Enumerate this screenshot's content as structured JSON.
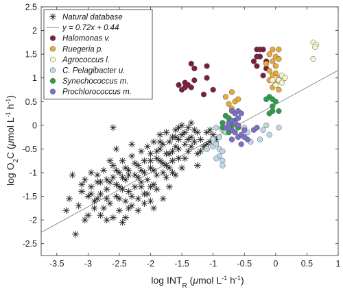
{
  "chart_data": {
    "type": "scatter",
    "xlabel": {
      "main": "log INT",
      "sub": "R",
      "pre_unit": " (",
      "mu": "μ",
      "unit": "mol L",
      "exp1": "-1",
      "mid": " h",
      "exp2": "-1",
      "close": ")"
    },
    "ylabel": {
      "main": "log O",
      "sub": "2",
      "tail": "C (",
      "mu": "μ",
      "unit": "mol L",
      "exp1": "-1",
      "mid": " h",
      "exp2": "-1",
      "close": ")"
    },
    "xlim": [
      -3.75,
      1
    ],
    "ylim": [
      -2.75,
      2.5
    ],
    "x_ticks": [
      -3.5,
      -3,
      -2.5,
      -2,
      -1.5,
      -1,
      -0.5,
      0,
      0.5,
      1
    ],
    "x_tick_labels": [
      "-3.5",
      "-3",
      "-2.5",
      "-2",
      "-1.5",
      "-1",
      "-0.5",
      "0",
      "0.5",
      "1"
    ],
    "y_ticks": [
      -2.5,
      -2,
      -1.5,
      -1,
      -0.5,
      0,
      0.5,
      1,
      1.5,
      2,
      2.5
    ],
    "y_tick_labels": [
      "-2.5",
      "-2",
      "-1.5",
      "-1",
      "-0.5",
      "0",
      "0.5",
      "1",
      "1.5",
      "2",
      "2.5"
    ],
    "grid": false,
    "legend_position": "top-left",
    "fit_line": {
      "label": "y = 0.72x + 0.44",
      "slope": 0.72,
      "intercept": 0.44,
      "color": "#777777"
    },
    "series": [
      {
        "name": "Natural database",
        "marker": "asterisk",
        "color": "#222222",
        "points": [
          [
            -3.2,
            -2.3
          ],
          [
            -3.25,
            -1.05
          ],
          [
            -3.3,
            -1.55
          ],
          [
            -3.15,
            -1.7
          ],
          [
            -3.05,
            -2.0
          ],
          [
            -3.0,
            -1.9
          ],
          [
            -3.1,
            -1.4
          ],
          [
            -2.95,
            -1.3
          ],
          [
            -2.9,
            -1.6
          ],
          [
            -2.85,
            -1.55
          ],
          [
            -2.85,
            -1.2
          ],
          [
            -2.95,
            -1.0
          ],
          [
            -2.8,
            -1.45
          ],
          [
            -2.75,
            -1.75
          ],
          [
            -2.8,
            -1.9
          ],
          [
            -2.7,
            -2.0
          ],
          [
            -2.65,
            -1.65
          ],
          [
            -2.7,
            -1.35
          ],
          [
            -2.6,
            -1.1
          ],
          [
            -2.6,
            -0.85
          ],
          [
            -2.55,
            -1.25
          ],
          [
            -2.55,
            -1.5
          ],
          [
            -2.5,
            -1.8
          ],
          [
            -2.5,
            -1.0
          ],
          [
            -2.45,
            -1.35
          ],
          [
            -2.45,
            -0.75
          ],
          [
            -2.4,
            -1.15
          ],
          [
            -2.4,
            -1.6
          ],
          [
            -2.35,
            -0.95
          ],
          [
            -2.35,
            -1.4
          ],
          [
            -2.3,
            -1.7
          ],
          [
            -2.3,
            -0.65
          ],
          [
            -2.25,
            -1.05
          ],
          [
            -2.25,
            -1.3
          ],
          [
            -2.2,
            -0.85
          ],
          [
            -2.2,
            -1.55
          ],
          [
            -2.15,
            -0.55
          ],
          [
            -2.15,
            -1.2
          ],
          [
            -2.1,
            -0.75
          ],
          [
            -2.1,
            -1.0
          ],
          [
            -2.05,
            -1.45
          ],
          [
            -2.05,
            -0.45
          ],
          [
            -2.0,
            -0.9
          ],
          [
            -2.0,
            -0.6
          ],
          [
            -1.95,
            -1.25
          ],
          [
            -1.95,
            -0.35
          ],
          [
            -1.9,
            -0.7
          ],
          [
            -1.9,
            -1.05
          ],
          [
            -1.85,
            -0.5
          ],
          [
            -1.85,
            -0.2
          ],
          [
            -1.8,
            -0.8
          ],
          [
            -1.8,
            -0.4
          ],
          [
            -1.75,
            -0.6
          ],
          [
            -1.75,
            -0.15
          ],
          [
            -1.7,
            -0.35
          ],
          [
            -1.7,
            -0.9
          ],
          [
            -1.65,
            -0.25
          ],
          [
            -1.65,
            -0.55
          ],
          [
            -1.6,
            -0.1
          ],
          [
            -1.6,
            -0.45
          ],
          [
            -1.55,
            -0.3
          ],
          [
            -1.55,
            -0.7
          ],
          [
            -1.5,
            -0.2
          ],
          [
            -1.5,
            0.0
          ],
          [
            -1.45,
            -0.4
          ],
          [
            -1.45,
            -0.15
          ],
          [
            -1.4,
            -0.05
          ],
          [
            -1.4,
            -0.55
          ],
          [
            -1.35,
            -0.25
          ],
          [
            -1.3,
            -0.1
          ],
          [
            -1.3,
            -0.35
          ],
          [
            -1.25,
            -0.6
          ],
          [
            -1.2,
            -0.3
          ],
          [
            -1.15,
            -0.45
          ],
          [
            -1.1,
            -0.15
          ],
          [
            -1.05,
            -0.35
          ],
          [
            -1.0,
            -0.2
          ],
          [
            -0.95,
            -0.3
          ],
          [
            -1.35,
            0.05
          ],
          [
            -1.25,
            -0.85
          ],
          [
            -2.55,
            -0.5
          ],
          [
            -2.3,
            -0.4
          ],
          [
            -2.6,
            -0.05
          ],
          [
            -2.75,
            -0.95
          ],
          [
            -2.65,
            -1.2
          ],
          [
            -2.2,
            -1.8
          ],
          [
            -2.4,
            -1.95
          ],
          [
            -2.0,
            -1.6
          ],
          [
            -1.95,
            -1.75
          ],
          [
            -1.9,
            -1.35
          ],
          [
            -2.1,
            -1.65
          ],
          [
            -1.8,
            -1.55
          ],
          [
            -1.7,
            -1.3
          ],
          [
            -1.6,
            -1.05
          ],
          [
            -1.75,
            -1.1
          ],
          [
            -1.65,
            -0.75
          ],
          [
            -2.5,
            -1.55
          ],
          [
            -2.45,
            -2.05
          ],
          [
            -2.6,
            -1.95
          ],
          [
            -2.8,
            -1.2
          ],
          [
            -2.9,
            -1.75
          ],
          [
            -3.0,
            -1.5
          ],
          [
            -3.05,
            -1.15
          ],
          [
            -2.35,
            -1.05
          ],
          [
            -2.25,
            -0.8
          ],
          [
            -2.05,
            -1.15
          ],
          [
            -1.95,
            -0.95
          ],
          [
            -1.85,
            -0.75
          ],
          [
            -1.55,
            -0.5
          ],
          [
            -1.45,
            -0.7
          ],
          [
            -1.5,
            -0.9
          ],
          [
            -1.4,
            -0.3
          ],
          [
            -2.15,
            -1.3
          ],
          [
            -2.3,
            -1.5
          ],
          [
            -2.45,
            -1.1
          ],
          [
            -2.55,
            -0.95
          ],
          [
            -2.7,
            -1.55
          ],
          [
            -2.0,
            -1.3
          ],
          [
            -1.9,
            -0.55
          ],
          [
            -1.8,
            -1.0
          ],
          [
            -2.85,
            -1.05
          ],
          [
            -2.7,
            -1.15
          ],
          [
            -2.4,
            -0.9
          ],
          [
            -2.2,
            -1.1
          ],
          [
            -2.1,
            -1.45
          ],
          [
            -1.7,
            -0.6
          ],
          [
            -1.6,
            -0.25
          ],
          [
            -1.35,
            -0.45
          ],
          [
            -1.25,
            -0.15
          ],
          [
            -1.1,
            -0.4
          ],
          [
            -1.05,
            -0.1
          ],
          [
            -2.35,
            -1.75
          ],
          [
            -2.5,
            -1.3
          ],
          [
            -2.65,
            -0.75
          ],
          [
            -2.15,
            -0.95
          ],
          [
            -2.0,
            -0.75
          ],
          [
            -1.85,
            -0.35
          ],
          [
            -1.75,
            -0.85
          ],
          [
            -1.65,
            -1.0
          ],
          [
            -1.55,
            -0.05
          ],
          [
            -1.2,
            -0.55
          ],
          [
            -3.35,
            -1.8
          ],
          [
            -3.1,
            -1.25
          ],
          [
            -2.95,
            -1.45
          ]
        ]
      },
      {
        "name": "Halomonas v.",
        "marker": "circle",
        "color": "#7a1f3d",
        "points": [
          [
            -1.55,
            0.85
          ],
          [
            -1.45,
            0.8
          ],
          [
            -1.5,
            0.75
          ],
          [
            -1.4,
            0.85
          ],
          [
            -1.35,
            0.8
          ],
          [
            -1.3,
            0.95
          ],
          [
            -1.45,
            0.9
          ],
          [
            -1.1,
            1.0
          ],
          [
            -1.15,
            0.65
          ],
          [
            -1.0,
            0.75
          ],
          [
            -1.35,
            1.3
          ],
          [
            -1.3,
            1.2
          ],
          [
            -1.1,
            1.25
          ],
          [
            -0.3,
            1.6
          ],
          [
            -0.25,
            1.6
          ],
          [
            -0.2,
            1.6
          ],
          [
            -0.3,
            1.45
          ],
          [
            -0.25,
            1.45
          ],
          [
            -0.35,
            1.35
          ],
          [
            -0.15,
            1.35
          ],
          [
            -0.3,
            1.25
          ],
          [
            -0.15,
            1.2
          ],
          [
            -0.2,
            1.05
          ]
        ]
      },
      {
        "name": "Ruegeria p.",
        "marker": "circle",
        "color": "#e8a93a",
        "points": [
          [
            -0.8,
            0.6
          ],
          [
            -0.7,
            0.7
          ],
          [
            -0.75,
            0.45
          ],
          [
            -0.65,
            0.5
          ],
          [
            -0.7,
            0.35
          ],
          [
            -0.6,
            0.55
          ],
          [
            -0.05,
            1.6
          ],
          [
            0.05,
            1.6
          ],
          [
            -0.1,
            1.5
          ],
          [
            0.0,
            1.45
          ],
          [
            0.05,
            1.4
          ],
          [
            -0.05,
            1.35
          ],
          [
            -0.15,
            1.3
          ],
          [
            0.0,
            1.25
          ],
          [
            -0.1,
            1.15
          ],
          [
            0.0,
            1.1
          ],
          [
            -0.05,
            1.05
          ],
          [
            0.05,
            1.0
          ],
          [
            -0.1,
            0.95
          ],
          [
            0.0,
            0.9
          ],
          [
            -0.05,
            0.8
          ],
          [
            0.05,
            0.75
          ]
        ]
      },
      {
        "name": "Agrococcus l.",
        "marker": "circle",
        "color": "#f6f4c8",
        "points": [
          [
            0.6,
            1.75
          ],
          [
            0.65,
            1.7
          ],
          [
            0.63,
            1.65
          ],
          [
            0.6,
            1.4
          ],
          [
            0.1,
            1.05
          ],
          [
            0.15,
            1.0
          ],
          [
            0.05,
            0.95
          ],
          [
            0.1,
            0.9
          ],
          [
            -0.05,
            0.95
          ],
          [
            0.0,
            0.85
          ]
        ]
      },
      {
        "name": "C. Pelagibacter u.",
        "marker": "circle",
        "color": "#bcd9e8",
        "points": [
          [
            -1.1,
            -0.5
          ],
          [
            -1.0,
            -0.45
          ],
          [
            -0.95,
            -0.4
          ],
          [
            -0.9,
            -0.5
          ],
          [
            -0.85,
            -0.55
          ],
          [
            -0.9,
            -0.65
          ],
          [
            -0.85,
            -0.75
          ],
          [
            -0.95,
            -0.7
          ],
          [
            -0.85,
            -0.85
          ],
          [
            -1.0,
            -0.3
          ],
          [
            -0.9,
            -0.25
          ],
          [
            -0.95,
            -0.05
          ],
          [
            -0.85,
            -0.1
          ],
          [
            -0.8,
            -0.15
          ],
          [
            -0.5,
            -0.05
          ],
          [
            -0.45,
            -0.15
          ],
          [
            -0.4,
            -0.35
          ],
          [
            -0.2,
            -0.1
          ],
          [
            -0.25,
            -0.3
          ],
          [
            -0.1,
            -0.2
          ],
          [
            0.05,
            -0.05
          ],
          [
            -0.15,
            0.0
          ]
        ]
      },
      {
        "name": "Synechococcus m.",
        "marker": "circle",
        "color": "#2a9f48",
        "points": [
          [
            -0.85,
            0.05
          ],
          [
            -0.8,
            0.2
          ],
          [
            -0.75,
            0.15
          ],
          [
            -0.85,
            -0.05
          ],
          [
            -0.7,
            0.0
          ],
          [
            -0.75,
            -0.15
          ],
          [
            -0.65,
            0.1
          ],
          [
            -0.6,
            -0.05
          ],
          [
            -0.1,
            0.6
          ],
          [
            -0.05,
            0.55
          ],
          [
            -0.15,
            0.55
          ],
          [
            0.0,
            0.5
          ],
          [
            -0.05,
            0.3
          ],
          [
            -0.1,
            0.25
          ],
          [
            0.05,
            0.3
          ],
          [
            -0.05,
            0.4
          ]
        ]
      },
      {
        "name": "Prochlorococcus m.",
        "marker": "circle",
        "color": "#7b6fc8",
        "points": [
          [
            -0.8,
            -0.05
          ],
          [
            -0.75,
            0.05
          ],
          [
            -0.7,
            0.1
          ],
          [
            -0.65,
            0.05
          ],
          [
            -0.6,
            0.0
          ],
          [
            -0.7,
            -0.1
          ],
          [
            -0.65,
            -0.15
          ],
          [
            -0.6,
            -0.25
          ],
          [
            -0.55,
            -0.2
          ],
          [
            -0.5,
            -0.1
          ],
          [
            -0.7,
            0.3
          ],
          [
            -0.65,
            0.25
          ],
          [
            -0.6,
            0.3
          ],
          [
            -0.55,
            0.25
          ],
          [
            -0.7,
            -0.3
          ],
          [
            -0.55,
            -0.4
          ],
          [
            -0.45,
            -0.3
          ],
          [
            -0.5,
            -0.25
          ],
          [
            -0.35,
            -0.1
          ],
          [
            -0.3,
            -0.05
          ],
          [
            -0.75,
            -0.05
          ],
          [
            -0.6,
            0.15
          ]
        ]
      }
    ]
  }
}
